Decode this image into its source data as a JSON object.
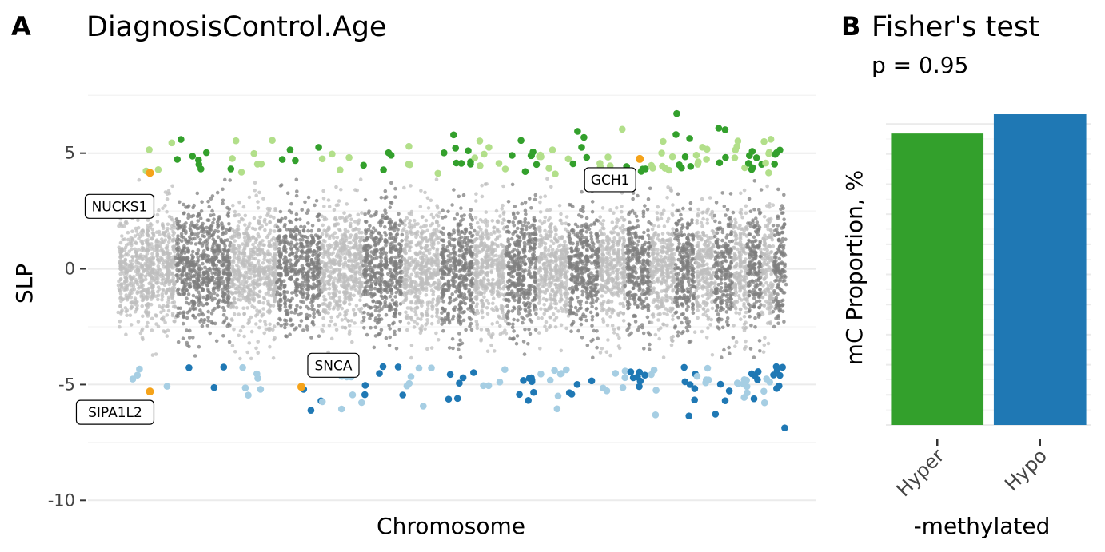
{
  "panel_a": {
    "letter": "A",
    "chart_data": {
      "type": "scatter",
      "title": "DiagnosisControl.Age",
      "xlabel": "Chromosome",
      "ylabel": "SLP",
      "ylim": [
        -10.3,
        9.2
      ],
      "y_ticks": [
        5,
        0,
        -5,
        -10
      ],
      "y_tick_labels": [
        "5",
        "0",
        "-5",
        "-10"
      ],
      "grid": true,
      "n_chromosomes": 22,
      "colors": {
        "chrom_light": "#bebebe",
        "chrom_dark": "#7f7f7f",
        "hyper_strong": "#33a02c",
        "hyper_weak": "#b2df8a",
        "hypo_strong": "#1f78b4",
        "hypo_weak": "#a6cee3",
        "highlight": "#f5a31a"
      },
      "gene_labels": [
        {
          "label": "NUCKS1",
          "chrom": 1,
          "y": 4.15
        },
        {
          "label": "SIPA1L2",
          "chrom": 1,
          "y": -5.3
        },
        {
          "label": "SNCA",
          "chrom": 4,
          "y": -5.1
        },
        {
          "label": "GCH1",
          "chrom": 14,
          "y": 4.75
        }
      ]
    }
  },
  "panel_b": {
    "letter": "B",
    "subtitle": "p = 0.95",
    "chart_data": {
      "type": "bar",
      "title": "Fisher's test",
      "categories": [
        "Hyper",
        "Hypo"
      ],
      "values": [
        48.4,
        51.6
      ],
      "colors": [
        "#33a02c",
        "#1f78b4"
      ],
      "xlabel": "-methylated",
      "ylabel": "mC Proportion, %",
      "grid": true
    }
  }
}
